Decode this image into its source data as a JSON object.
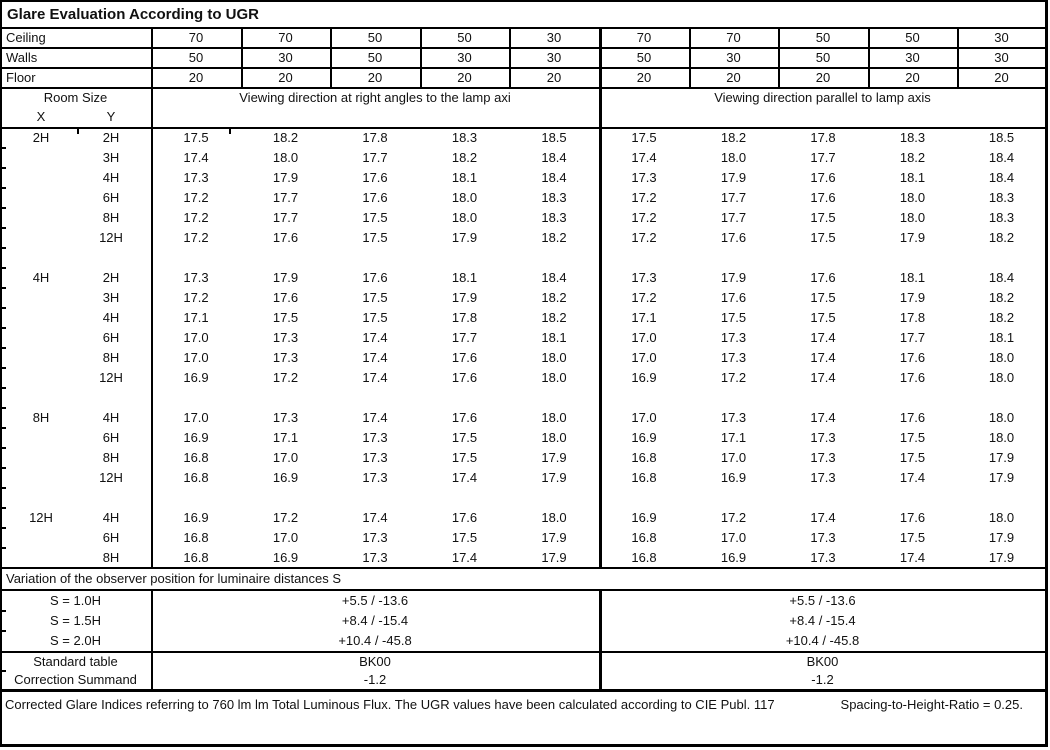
{
  "title": "Glare Evaluation According to UGR",
  "surface_rows": [
    {
      "label": "Ceiling",
      "values": [
        "70",
        "70",
        "50",
        "50",
        "30",
        "70",
        "70",
        "50",
        "50",
        "30"
      ]
    },
    {
      "label": "Walls",
      "values": [
        "50",
        "30",
        "50",
        "30",
        "30",
        "50",
        "30",
        "50",
        "30",
        "30"
      ]
    },
    {
      "label": "Floor",
      "values": [
        "20",
        "20",
        "20",
        "20",
        "20",
        "20",
        "20",
        "20",
        "20",
        "20"
      ]
    }
  ],
  "header": {
    "room_size": "Room Size",
    "x": "X",
    "y": "Y",
    "viewing_left": "Viewing direction at right angles to the lamp axi",
    "viewing_right": "Viewing direction parallel to lamp axis"
  },
  "ugr_blocks": [
    {
      "x": "2H",
      "rows": [
        {
          "y": "2H",
          "values": [
            "17.5",
            "18.2",
            "17.8",
            "18.3",
            "18.5",
            "17.5",
            "18.2",
            "17.8",
            "18.3",
            "18.5"
          ]
        },
        {
          "y": "3H",
          "values": [
            "17.4",
            "18.0",
            "17.7",
            "18.2",
            "18.4",
            "17.4",
            "18.0",
            "17.7",
            "18.2",
            "18.4"
          ]
        },
        {
          "y": "4H",
          "values": [
            "17.3",
            "17.9",
            "17.6",
            "18.1",
            "18.4",
            "17.3",
            "17.9",
            "17.6",
            "18.1",
            "18.4"
          ]
        },
        {
          "y": "6H",
          "values": [
            "17.2",
            "17.7",
            "17.6",
            "18.0",
            "18.3",
            "17.2",
            "17.7",
            "17.6",
            "18.0",
            "18.3"
          ]
        },
        {
          "y": "8H",
          "values": [
            "17.2",
            "17.7",
            "17.5",
            "18.0",
            "18.3",
            "17.2",
            "17.7",
            "17.5",
            "18.0",
            "18.3"
          ]
        },
        {
          "y": "12H",
          "values": [
            "17.2",
            "17.6",
            "17.5",
            "17.9",
            "18.2",
            "17.2",
            "17.6",
            "17.5",
            "17.9",
            "18.2"
          ]
        }
      ]
    },
    {
      "x": "4H",
      "rows": [
        {
          "y": "2H",
          "values": [
            "17.3",
            "17.9",
            "17.6",
            "18.1",
            "18.4",
            "17.3",
            "17.9",
            "17.6",
            "18.1",
            "18.4"
          ]
        },
        {
          "y": "3H",
          "values": [
            "17.2",
            "17.6",
            "17.5",
            "17.9",
            "18.2",
            "17.2",
            "17.6",
            "17.5",
            "17.9",
            "18.2"
          ]
        },
        {
          "y": "4H",
          "values": [
            "17.1",
            "17.5",
            "17.5",
            "17.8",
            "18.2",
            "17.1",
            "17.5",
            "17.5",
            "17.8",
            "18.2"
          ]
        },
        {
          "y": "6H",
          "values": [
            "17.0",
            "17.3",
            "17.4",
            "17.7",
            "18.1",
            "17.0",
            "17.3",
            "17.4",
            "17.7",
            "18.1"
          ]
        },
        {
          "y": "8H",
          "values": [
            "17.0",
            "17.3",
            "17.4",
            "17.6",
            "18.0",
            "17.0",
            "17.3",
            "17.4",
            "17.6",
            "18.0"
          ]
        },
        {
          "y": "12H",
          "values": [
            "16.9",
            "17.2",
            "17.4",
            "17.6",
            "18.0",
            "16.9",
            "17.2",
            "17.4",
            "17.6",
            "18.0"
          ]
        }
      ]
    },
    {
      "x": "8H",
      "rows": [
        {
          "y": "4H",
          "values": [
            "17.0",
            "17.3",
            "17.4",
            "17.6",
            "18.0",
            "17.0",
            "17.3",
            "17.4",
            "17.6",
            "18.0"
          ]
        },
        {
          "y": "6H",
          "values": [
            "16.9",
            "17.1",
            "17.3",
            "17.5",
            "18.0",
            "16.9",
            "17.1",
            "17.3",
            "17.5",
            "18.0"
          ]
        },
        {
          "y": "8H",
          "values": [
            "16.8",
            "17.0",
            "17.3",
            "17.5",
            "17.9",
            "16.8",
            "17.0",
            "17.3",
            "17.5",
            "17.9"
          ]
        },
        {
          "y": "12H",
          "values": [
            "16.8",
            "16.9",
            "17.3",
            "17.4",
            "17.9",
            "16.8",
            "16.9",
            "17.3",
            "17.4",
            "17.9"
          ]
        }
      ]
    },
    {
      "x": "12H",
      "rows": [
        {
          "y": "4H",
          "values": [
            "16.9",
            "17.2",
            "17.4",
            "17.6",
            "18.0",
            "16.9",
            "17.2",
            "17.4",
            "17.6",
            "18.0"
          ]
        },
        {
          "y": "6H",
          "values": [
            "16.8",
            "17.0",
            "17.3",
            "17.5",
            "17.9",
            "16.8",
            "17.0",
            "17.3",
            "17.5",
            "17.9"
          ]
        },
        {
          "y": "8H",
          "values": [
            "16.8",
            "16.9",
            "17.3",
            "17.4",
            "17.9",
            "16.8",
            "16.9",
            "17.3",
            "17.4",
            "17.9"
          ]
        }
      ]
    }
  ],
  "variation_label": "Variation of the observer position for luminaire distances S",
  "s_rows": [
    {
      "label": "S = 1.0H",
      "left": "+5.5 / -13.6",
      "right": "+5.5 / -13.6"
    },
    {
      "label": "S = 1.5H",
      "left": "+8.4 / -15.4",
      "right": "+8.4 / -15.4"
    },
    {
      "label": "S = 2.0H",
      "left": "+10.4 / -45.8",
      "right": "+10.4 / -45.8"
    }
  ],
  "standard_rows": [
    {
      "label": "Standard table",
      "left": "BK00",
      "right": "BK00"
    },
    {
      "label": "Correction Summand",
      "left": "-1.2",
      "right": "-1.2"
    }
  ],
  "footer": {
    "text": "Corrected Glare Indices referring to 760 lm lm Total Luminous Flux. The UGR values have been calculated according to CIE Publ. 117",
    "ratio": "Spacing-to-Height-Ratio = 0.25."
  }
}
